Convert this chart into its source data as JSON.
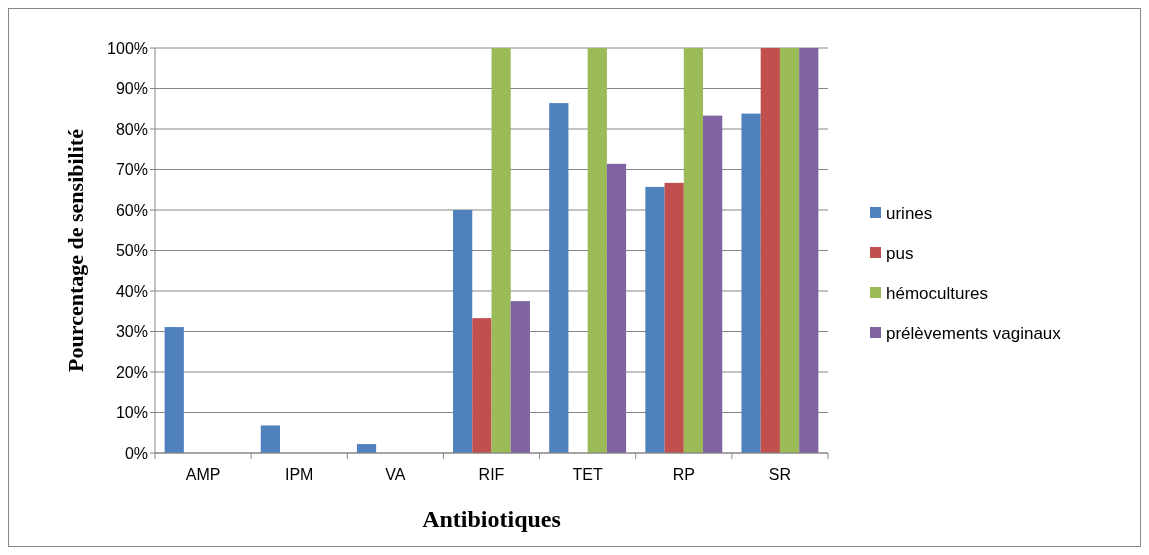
{
  "chart_data": {
    "type": "bar",
    "xlabel": "Antibiotiques",
    "ylabel": "Pourcentage de sensibilité",
    "categories": [
      "AMP",
      "IPM",
      "VA",
      "RIF",
      "TET",
      "RP",
      "SR"
    ],
    "series": [
      {
        "name": "urines",
        "color": "#4f81bd",
        "values": [
          31.1,
          6.8,
          2.2,
          60,
          86.4,
          65.7,
          83.8
        ]
      },
      {
        "name": "pus",
        "color": "#c0504d",
        "values": [
          0,
          0,
          0,
          33.3,
          0,
          66.7,
          100
        ]
      },
      {
        "name": "hémocultures",
        "color": "#9bbb59",
        "values": [
          0,
          0,
          0,
          100,
          100,
          100,
          100
        ]
      },
      {
        "name": "prélèvements vaginaux",
        "color": "#8064a2",
        "values": [
          0,
          0,
          0,
          37.5,
          71.4,
          83.3,
          100
        ]
      }
    ],
    "ylim": [
      0,
      100
    ],
    "yticks": [
      {
        "value": 0,
        "label": "0%"
      },
      {
        "value": 10,
        "label": "10%"
      },
      {
        "value": 20,
        "label": "20%"
      },
      {
        "value": 30,
        "label": "30%"
      },
      {
        "value": 40,
        "label": "40%"
      },
      {
        "value": 50,
        "label": "50%"
      },
      {
        "value": 60,
        "label": "60%"
      },
      {
        "value": 70,
        "label": "70%"
      },
      {
        "value": 80,
        "label": "80%"
      },
      {
        "value": 90,
        "label": "90%"
      },
      {
        "value": 100,
        "label": "100%"
      }
    ],
    "grid": "y",
    "legend": "right"
  }
}
